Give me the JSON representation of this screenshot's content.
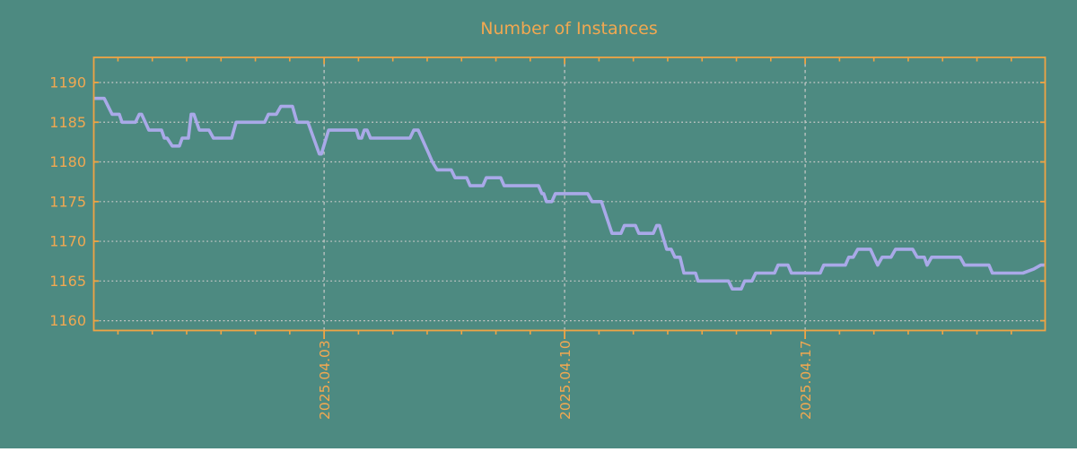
{
  "chart_data": {
    "type": "line",
    "title": "Number of Instances",
    "colors": {
      "background": "#4D8A81",
      "axis": "#EFA444",
      "text": "#F1A851",
      "grid": "#C9C9C9",
      "series_line": "#A9A9E8"
    },
    "ylabel": "",
    "xlabel": "",
    "ylim": [
      1158.8,
      1193.3
    ],
    "y_ticks": [
      1160,
      1165,
      1170,
      1175,
      1180,
      1185,
      1190
    ],
    "x_axis": {
      "unit": "days_from_chart_start",
      "days_total": 27.66,
      "major_ticks": [
        {
          "day": 6.69,
          "label": "2025.04.03"
        },
        {
          "day": 13.69,
          "label": "2025.04.10"
        },
        {
          "day": 20.69,
          "label": "2025.04.17"
        }
      ],
      "minor_tick_start_day": 0.69,
      "minor_tick_step_days": 1
    },
    "grid": {
      "horizontal": "dotted",
      "vertical_at_major_ticks": "dashed"
    },
    "legend": null,
    "series": [
      {
        "name": "instances",
        "points": [
          [
            0.0,
            1188
          ],
          [
            0.29,
            1188
          ],
          [
            0.52,
            1186
          ],
          [
            0.73,
            1186
          ],
          [
            0.81,
            1185
          ],
          [
            1.2,
            1185
          ],
          [
            1.31,
            1186
          ],
          [
            1.38,
            1186
          ],
          [
            1.59,
            1184
          ],
          [
            1.96,
            1184
          ],
          [
            2.04,
            1183
          ],
          [
            2.12,
            1183
          ],
          [
            2.27,
            1182
          ],
          [
            2.48,
            1182
          ],
          [
            2.56,
            1183
          ],
          [
            2.74,
            1183
          ],
          [
            2.82,
            1186
          ],
          [
            2.9,
            1186
          ],
          [
            3.06,
            1184
          ],
          [
            3.34,
            1184
          ],
          [
            3.47,
            1183
          ],
          [
            4.0,
            1183
          ],
          [
            4.13,
            1185
          ],
          [
            4.96,
            1185
          ],
          [
            5.07,
            1186
          ],
          [
            5.3,
            1186
          ],
          [
            5.43,
            1187
          ],
          [
            5.77,
            1187
          ],
          [
            5.9,
            1185
          ],
          [
            6.22,
            1185
          ],
          [
            6.55,
            1181
          ],
          [
            6.61,
            1181
          ],
          [
            6.82,
            1184
          ],
          [
            7.63,
            1184
          ],
          [
            7.7,
            1183
          ],
          [
            7.78,
            1183
          ],
          [
            7.86,
            1184
          ],
          [
            7.94,
            1184
          ],
          [
            8.04,
            1183
          ],
          [
            9.19,
            1183
          ],
          [
            9.3,
            1184
          ],
          [
            9.43,
            1184
          ],
          [
            9.74,
            1181
          ],
          [
            9.84,
            1180
          ],
          [
            9.98,
            1179
          ],
          [
            10.39,
            1179
          ],
          [
            10.5,
            1178
          ],
          [
            10.84,
            1178
          ],
          [
            10.94,
            1177
          ],
          [
            11.31,
            1177
          ],
          [
            11.41,
            1178
          ],
          [
            11.83,
            1178
          ],
          [
            11.93,
            1177
          ],
          [
            12.93,
            1177
          ],
          [
            13.03,
            1176
          ],
          [
            13.08,
            1176
          ],
          [
            13.16,
            1175
          ],
          [
            13.32,
            1175
          ],
          [
            13.42,
            1176
          ],
          [
            14.36,
            1176
          ],
          [
            14.49,
            1175
          ],
          [
            14.76,
            1175
          ],
          [
            15.07,
            1171
          ],
          [
            15.33,
            1171
          ],
          [
            15.43,
            1172
          ],
          [
            15.75,
            1172
          ],
          [
            15.85,
            1171
          ],
          [
            16.27,
            1171
          ],
          [
            16.37,
            1172
          ],
          [
            16.45,
            1172
          ],
          [
            16.66,
            1169
          ],
          [
            16.79,
            1169
          ],
          [
            16.9,
            1168
          ],
          [
            17.05,
            1168
          ],
          [
            17.16,
            1166
          ],
          [
            17.5,
            1166
          ],
          [
            17.57,
            1165
          ],
          [
            18.46,
            1165
          ],
          [
            18.57,
            1164
          ],
          [
            18.83,
            1164
          ],
          [
            18.93,
            1165
          ],
          [
            19.14,
            1165
          ],
          [
            19.25,
            1166
          ],
          [
            19.8,
            1166
          ],
          [
            19.9,
            1167
          ],
          [
            20.19,
            1167
          ],
          [
            20.29,
            1166
          ],
          [
            21.13,
            1166
          ],
          [
            21.23,
            1167
          ],
          [
            21.86,
            1167
          ],
          [
            21.96,
            1168
          ],
          [
            22.09,
            1168
          ],
          [
            22.22,
            1169
          ],
          [
            22.59,
            1169
          ],
          [
            22.8,
            1167
          ],
          [
            22.93,
            1168
          ],
          [
            23.19,
            1168
          ],
          [
            23.32,
            1169
          ],
          [
            23.82,
            1169
          ],
          [
            23.95,
            1168
          ],
          [
            24.16,
            1168
          ],
          [
            24.24,
            1167
          ],
          [
            24.37,
            1168
          ],
          [
            25.2,
            1168
          ],
          [
            25.33,
            1167
          ],
          [
            26.04,
            1167
          ],
          [
            26.14,
            1166
          ],
          [
            27.03,
            1166
          ],
          [
            27.34,
            1166.5
          ],
          [
            27.55,
            1167
          ],
          [
            27.66,
            1167
          ]
        ]
      }
    ]
  }
}
